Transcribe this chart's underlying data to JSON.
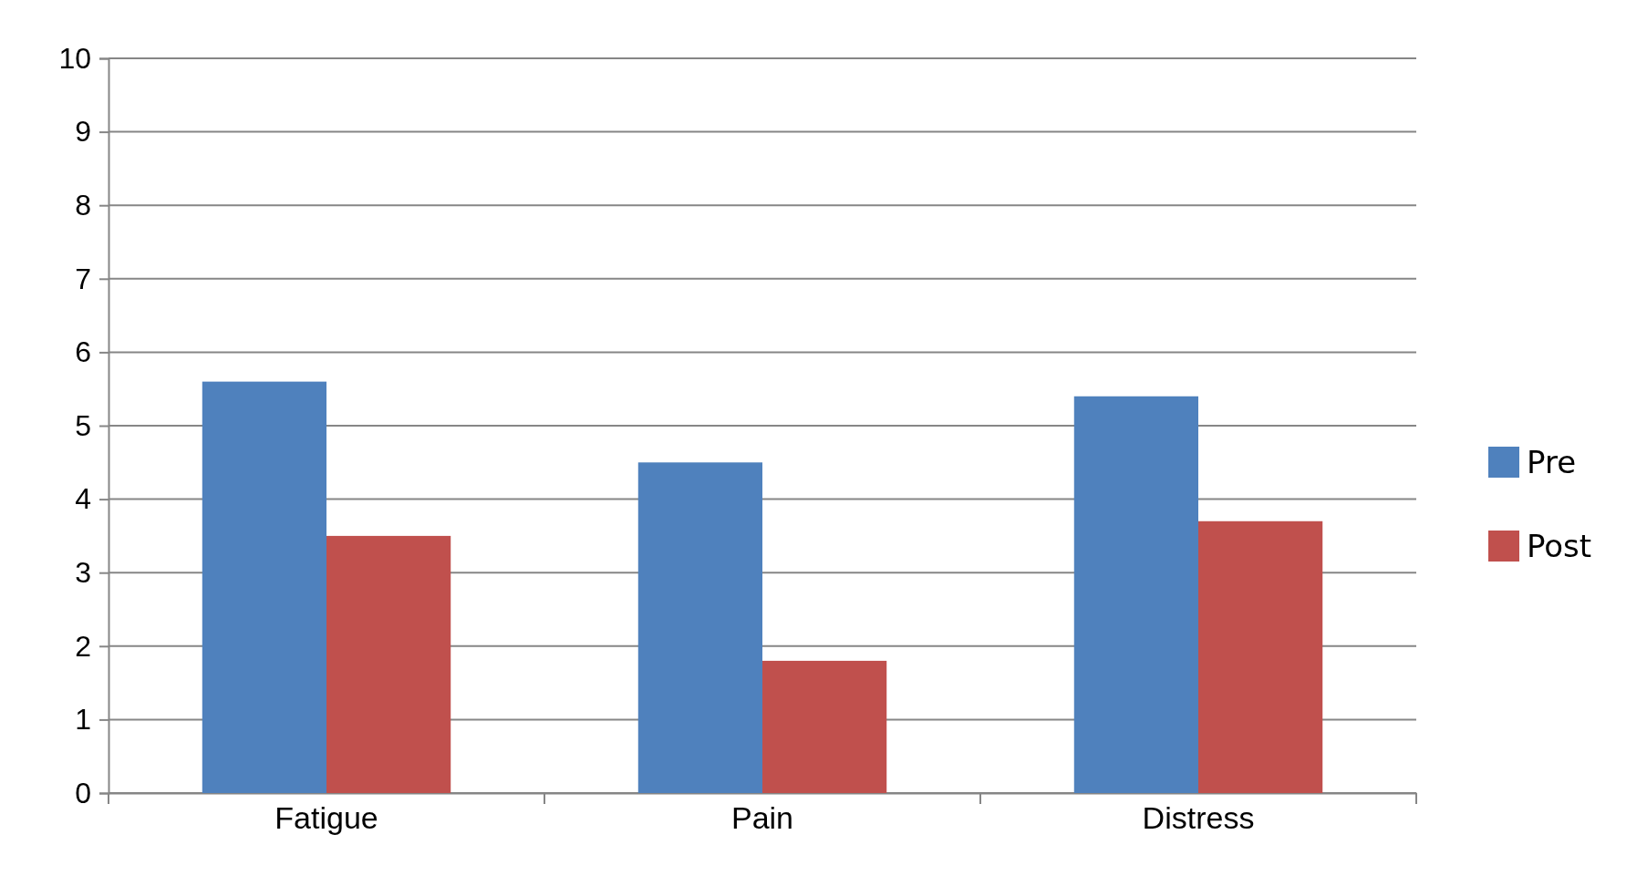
{
  "chart_data": {
    "type": "bar",
    "categories": [
      "Fatigue",
      "Pain",
      "Distress"
    ],
    "series": [
      {
        "name": "Pre",
        "color": "#4f81bd",
        "values": [
          5.6,
          4.5,
          5.4
        ]
      },
      {
        "name": "Post",
        "color": "#c0504d",
        "values": [
          3.5,
          1.8,
          3.7
        ]
      }
    ],
    "ylim": [
      0,
      10
    ],
    "yticks": [
      0,
      1,
      2,
      3,
      4,
      5,
      6,
      7,
      8,
      9,
      10
    ],
    "grid": "y",
    "legend": "right"
  }
}
